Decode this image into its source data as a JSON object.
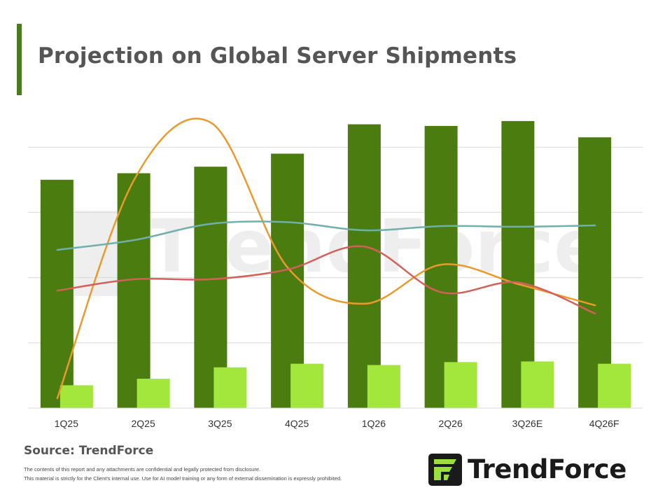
{
  "header": {
    "title": "Projection on Global Server Shipments",
    "accent_color": "#4a7c1f"
  },
  "footer": {
    "source": "Source: TrendForce",
    "disclaimer_line1": "The contents of this report and any attachments are confidential and legally protected from disclosure.",
    "disclaimer_line2": "This material is strictly for the Client's internal use. Use for AI model training or any form of external dissemination is expressly prohibited."
  },
  "branding": {
    "logo_text": "TrendForce",
    "watermark_text": "TrendForce",
    "logo_icon": "trendforce-logo-icon"
  },
  "colors": {
    "bar_primary": "#4a7c10",
    "bar_secondary": "#a3e63c",
    "line_orange": "#ea9a2d",
    "line_teal": "#6fb0aa",
    "line_red": "#d4605a",
    "gridline": "#d9d9d9"
  },
  "chart_data": {
    "type": "bar",
    "title": "Projection on Global Server Shipments",
    "categories": [
      "1Q25",
      "2Q25",
      "3Q25",
      "4Q25",
      "1Q26",
      "2Q26",
      "3Q26E",
      "4Q26F"
    ],
    "xlabel": "",
    "ylabel": "",
    "ylim": [
      0,
      100
    ],
    "grid": true,
    "legend": "none",
    "series": [
      {
        "kind": "bar",
        "color": "#4a7c10",
        "values": [
          70,
          72,
          74,
          78,
          87,
          86.5,
          88,
          83
        ]
      },
      {
        "kind": "bar",
        "color": "#a3e63c",
        "values": [
          7,
          9,
          12.5,
          13.6,
          13.2,
          14.1,
          14.3,
          13.6
        ]
      },
      {
        "kind": "line",
        "color": "#ea9a2d",
        "values": [
          3,
          70,
          87.5,
          43,
          32,
          44,
          38,
          31.5
        ]
      },
      {
        "kind": "line",
        "color": "#6fb0aa",
        "values": [
          48.5,
          51.5,
          56.5,
          57,
          54.5,
          55.8,
          55.6,
          56
        ]
      },
      {
        "kind": "line",
        "color": "#d4605a",
        "values": [
          36,
          39.5,
          39.5,
          42.5,
          49.5,
          35.5,
          38.5,
          29
        ]
      }
    ]
  }
}
